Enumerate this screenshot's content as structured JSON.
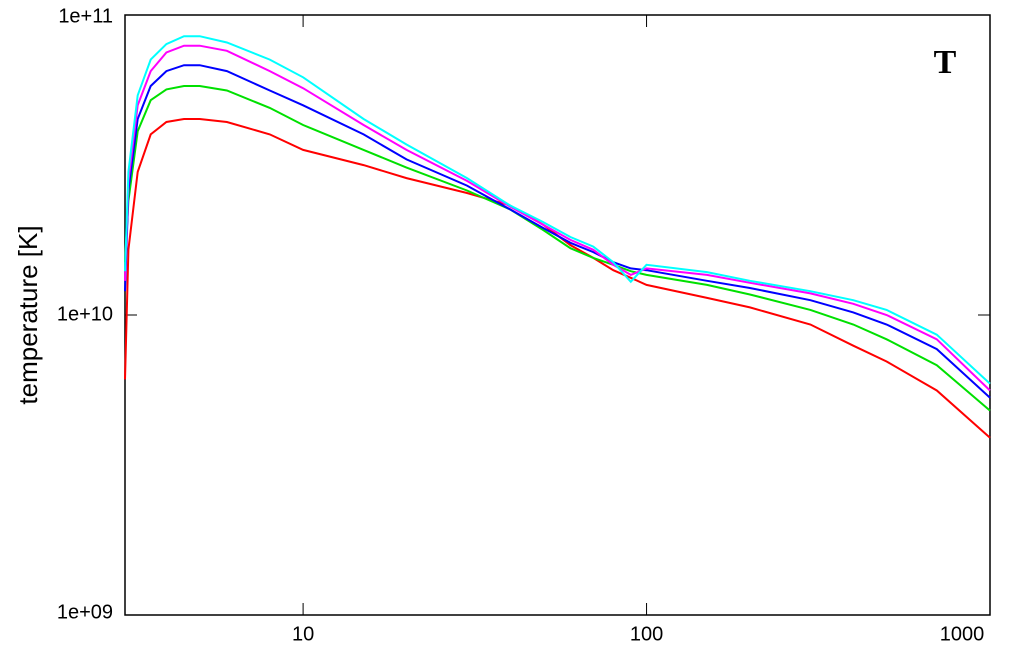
{
  "chart_data": {
    "type": "line",
    "annotation": "T",
    "ylabel": "temperature [K]",
    "xscale": "log",
    "yscale": "log",
    "xlim": [
      3.03,
      1000
    ],
    "ylim": [
      1000000000.0,
      100000000000.0
    ],
    "xticks": [
      10,
      100,
      1000
    ],
    "yticks": [
      {
        "value": 1000000000.0,
        "label": "1e+09"
      },
      {
        "value": 10000000000.0,
        "label": "1e+10"
      },
      {
        "value": 100000000000.0,
        "label": "1e+11"
      }
    ],
    "x": [
      3.03,
      3.1,
      3.3,
      3.6,
      4,
      4.5,
      5,
      6,
      8,
      10,
      15,
      20,
      30,
      40,
      50,
      60,
      70,
      80,
      90,
      100,
      150,
      200,
      300,
      400,
      500,
      700,
      1000
    ],
    "series": [
      {
        "color": "#ff0000",
        "values": [
          6100000000.0,
          16500000000.0,
          30000000000.0,
          40000000000.0,
          44000000000.0,
          45000000000.0,
          45000000000.0,
          44000000000.0,
          40000000000.0,
          35500000000.0,
          31600000000.0,
          28600000000.0,
          25500000000.0,
          23200000000.0,
          20000000000.0,
          17100000000.0,
          15500000000.0,
          14100000000.0,
          13300000000.0,
          12600000000.0,
          11400000000.0,
          10600000000.0,
          9300000000.0,
          7900000000.0,
          7000000000.0,
          5600000000.0,
          3900000000.0
        ]
      },
      {
        "color": "#00e000",
        "values": [
          15000000000.0,
          24000000000.0,
          41000000000.0,
          52000000000.0,
          56500000000.0,
          58000000000.0,
          58000000000.0,
          56000000000.0,
          49000000000.0,
          43000000000.0,
          35500000000.0,
          31000000000.0,
          26000000000.0,
          22500000000.0,
          19200000000.0,
          16700000000.0,
          15500000000.0,
          14700000000.0,
          14000000000.0,
          13600000000.0,
          12600000000.0,
          11700000000.0,
          10400000000.0,
          9300000000.0,
          8300000000.0,
          6800000000.0,
          4800000000.0
        ]
      },
      {
        "color": "#0000ff",
        "values": [
          12000000000.0,
          26000000000.0,
          45000000000.0,
          58000000000.0,
          65000000000.0,
          68000000000.0,
          68000000000.0,
          65000000000.0,
          56000000000.0,
          50000000000.0,
          40000000000.0,
          33000000000.0,
          27000000000.0,
          22500000000.0,
          19500000000.0,
          17400000000.0,
          16200000000.0,
          15000000000.0,
          14300000000.0,
          14100000000.0,
          13000000000.0,
          12300000000.0,
          11200000000.0,
          10200000000.0,
          9300000000.0,
          7700000000.0,
          5300000000.0
        ]
      },
      {
        "color": "#ff00ff",
        "values": [
          13000000000.0,
          28000000000.0,
          50000000000.0,
          65000000000.0,
          75000000000.0,
          79000000000.0,
          79000000000.0,
          76000000000.0,
          65000000000.0,
          57000000000.0,
          43000000000.0,
          35500000000.0,
          28000000000.0,
          23000000000.0,
          20000000000.0,
          17800000000.0,
          16500000000.0,
          14700000000.0,
          13600000000.0,
          14300000000.0,
          13600000000.0,
          12800000000.0,
          11800000000.0,
          10900000000.0,
          10000000000.0,
          8300000000.0,
          5600000000.0
        ]
      },
      {
        "color": "#00ffff",
        "values": [
          14000000000.0,
          30000000000.0,
          54000000000.0,
          71000000000.0,
          80000000000.0,
          85000000000.0,
          85000000000.0,
          81000000000.0,
          71000000000.0,
          62000000000.0,
          45000000000.0,
          37000000000.0,
          28600000000.0,
          23200000000.0,
          20400000000.0,
          18200000000.0,
          16900000000.0,
          15000000000.0,
          12900000000.0,
          14700000000.0,
          13900000000.0,
          13000000000.0,
          12000000000.0,
          11200000000.0,
          10400000000.0,
          8600000000.0,
          5900000000.0
        ]
      }
    ]
  }
}
